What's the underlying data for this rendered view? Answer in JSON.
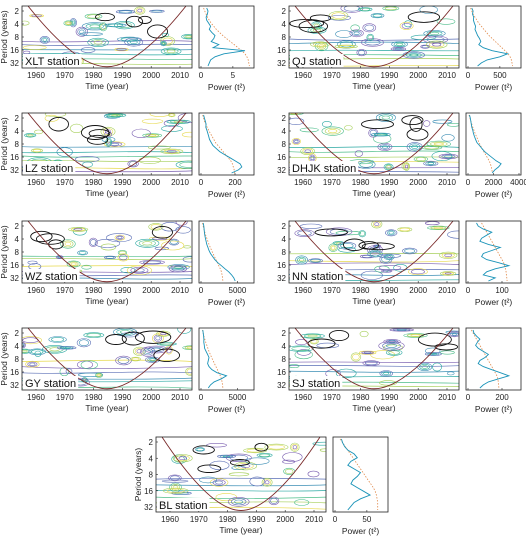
{
  "chart_data": {
    "type": "wavelet-power-spectrum",
    "panels": [
      {
        "station": "XLT station",
        "xlabel": "Time (year)",
        "ylabel": "Period (years)",
        "x_ticks": [
          "1960",
          "1970",
          "1980",
          "1990",
          "2000",
          "2010"
        ],
        "y_ticks": [
          "2",
          "4",
          "8",
          "16",
          "32"
        ],
        "power_label": "Power (t²)",
        "power_ticks": [
          "0",
          "5"
        ],
        "power_max": 8,
        "global_power": [
          0.9,
          1.1,
          1.0,
          0.8,
          0.9,
          1.2,
          1.5,
          1.3,
          1.7,
          2.2,
          2.0,
          1.6,
          2.8,
          1.9,
          6.9,
          3.6,
          2.2,
          1.5,
          1.3,
          1.1
        ],
        "significance": [
          0.4,
          0.6,
          0.8,
          1.0,
          1.3,
          1.6,
          2.0,
          2.4,
          2.9,
          3.4,
          4.0,
          4.6,
          5.2,
          5.8,
          6.4,
          6.9,
          7.2,
          7.4,
          7.5,
          7.6
        ]
      },
      {
        "station": "QJ station",
        "xlabel": "Time (year)",
        "ylabel": "",
        "x_ticks": [
          "1960",
          "1970",
          "1980",
          "1990",
          "2000",
          "2010"
        ],
        "y_ticks": [
          "2",
          "4",
          "8",
          "16",
          "32"
        ],
        "power_label": "Power (t²)",
        "power_ticks": [
          "0",
          "500"
        ],
        "power_max": 800,
        "global_power": [
          60,
          80,
          70,
          90,
          85,
          100,
          120,
          110,
          130,
          150,
          180,
          200,
          170,
          240,
          380,
          620,
          500,
          300,
          210,
          150
        ],
        "significance": [
          40,
          60,
          80,
          110,
          140,
          170,
          210,
          250,
          290,
          330,
          380,
          430,
          480,
          530,
          580,
          630,
          660,
          680,
          690,
          700
        ]
      },
      {
        "station": "LZ station",
        "xlabel": "Time (year)",
        "ylabel": "Period (years)",
        "x_ticks": [
          "1960",
          "1970",
          "1980",
          "1990",
          "2000",
          "2010"
        ],
        "y_ticks": [
          "2",
          "4",
          "8",
          "16",
          "32"
        ],
        "power_label": "Power (t²)",
        "power_ticks": [
          "0",
          "200"
        ],
        "power_max": 300,
        "global_power": [
          15,
          20,
          25,
          30,
          28,
          35,
          40,
          45,
          50,
          60,
          70,
          90,
          110,
          140,
          170,
          200,
          230,
          240,
          220,
          180
        ],
        "significance": [
          10,
          15,
          20,
          28,
          36,
          45,
          55,
          65,
          75,
          85,
          100,
          115,
          130,
          145,
          160,
          175,
          185,
          190,
          195,
          198
        ]
      },
      {
        "station": "DHJK station",
        "xlabel": "Time (year)",
        "ylabel": "",
        "x_ticks": [
          "1960",
          "1970",
          "1980",
          "1990",
          "2000",
          "2010"
        ],
        "y_ticks": [
          "2",
          "4",
          "8",
          "16",
          "32"
        ],
        "power_label": "Power (t²)",
        "power_ticks": [
          "0",
          "2000",
          "4000"
        ],
        "power_max": 4000,
        "global_power": [
          120,
          180,
          220,
          260,
          300,
          380,
          420,
          500,
          600,
          700,
          900,
          1100,
          1300,
          1600,
          1900,
          2200,
          2600,
          2400,
          2100,
          1900
        ],
        "significance": [
          80,
          150,
          220,
          300,
          380,
          470,
          560,
          660,
          760,
          860,
          980,
          1100,
          1240,
          1380,
          1520,
          1660,
          1760,
          1830,
          1880,
          1900
        ]
      },
      {
        "station": "WZ station",
        "xlabel": "Time (year)",
        "ylabel": "Period (years)",
        "x_ticks": [
          "1960",
          "1970",
          "1980",
          "1990",
          "2000",
          "2010"
        ],
        "y_ticks": [
          "2",
          "4",
          "8",
          "16",
          "32"
        ],
        "power_label": "Power (t²)",
        "power_ticks": [
          "0",
          "5000"
        ],
        "power_max": 7000,
        "global_power": [
          300,
          380,
          420,
          460,
          520,
          600,
          700,
          800,
          950,
          1100,
          1300,
          1600,
          1900,
          2300,
          2800,
          3300,
          3800,
          4200,
          4500,
          4700
        ],
        "significance": [
          200,
          300,
          400,
          520,
          650,
          800,
          950,
          1100,
          1280,
          1450,
          1650,
          1850,
          2050,
          2250,
          2450,
          2650,
          2800,
          2900,
          2950,
          3000
        ]
      },
      {
        "station": "NN station",
        "xlabel": "Time (year)",
        "ylabel": "",
        "x_ticks": [
          "1960",
          "1970",
          "1980",
          "1990",
          "2000",
          "2010"
        ],
        "y_ticks": [
          "2",
          "4",
          "8",
          "16",
          "32"
        ],
        "power_label": "Power (t²)",
        "power_ticks": [
          "0",
          "100"
        ],
        "power_max": 150,
        "global_power": [
          25,
          30,
          45,
          70,
          55,
          40,
          35,
          60,
          95,
          70,
          45,
          40,
          55,
          90,
          120,
          80,
          55,
          45,
          80,
          60
        ],
        "significance": [
          40,
          45,
          50,
          55,
          60,
          65,
          70,
          75,
          80,
          85,
          90,
          95,
          100,
          105,
          108,
          110,
          112,
          113,
          114,
          115
        ]
      },
      {
        "station": "GY station",
        "xlabel": "Time (year)",
        "ylabel": "Period (years)",
        "x_ticks": [
          "1960",
          "1970",
          "1980",
          "1990",
          "2000",
          "2010"
        ],
        "y_ticks": [
          "2",
          "4",
          "8",
          "16",
          "32"
        ],
        "power_label": "Power (t²)",
        "power_ticks": [
          "0",
          "5000"
        ],
        "power_max": 7000,
        "global_power": [
          250,
          300,
          350,
          400,
          380,
          450,
          500,
          700,
          900,
          1100,
          1000,
          900,
          1100,
          1500,
          2200,
          3500,
          2800,
          1800,
          1300,
          1000
        ],
        "significance": [
          200,
          300,
          400,
          520,
          650,
          800,
          950,
          1100,
          1280,
          1450,
          1650,
          1850,
          2050,
          2250,
          2450,
          2650,
          2800,
          2900,
          2950,
          3000
        ]
      },
      {
        "station": "SJ station",
        "xlabel": "Time (year)",
        "ylabel": "",
        "x_ticks": [
          "1960",
          "1970",
          "1980",
          "1990",
          "2000",
          "2010"
        ],
        "y_ticks": [
          "2",
          "4",
          "8",
          "16",
          "32"
        ],
        "power_label": "Power (t²)",
        "power_ticks": [
          "0",
          "200"
        ],
        "power_max": 300,
        "global_power": [
          30,
          35,
          50,
          70,
          55,
          45,
          60,
          90,
          120,
          100,
          70,
          60,
          90,
          140,
          190,
          240,
          180,
          120,
          90,
          70
        ],
        "significance": [
          20,
          30,
          40,
          50,
          60,
          70,
          80,
          90,
          100,
          110,
          120,
          130,
          140,
          150,
          160,
          170,
          175,
          178,
          180,
          182
        ]
      },
      {
        "station": "BL station",
        "xlabel": "Time (year)",
        "ylabel": "Period (years)",
        "x_ticks": [
          "1960",
          "1970",
          "1980",
          "1990",
          "2000",
          "2010"
        ],
        "y_ticks": [
          "2",
          "4",
          "8",
          "16",
          "32"
        ],
        "power_label": "Power (t²)",
        "power_ticks": [
          "0",
          "50"
        ],
        "power_max": 80,
        "global_power": [
          10,
          12,
          15,
          20,
          30,
          35,
          25,
          20,
          30,
          40,
          35,
          28,
          25,
          35,
          45,
          55,
          40,
          30,
          25,
          20
        ],
        "significance": [
          8,
          12,
          16,
          20,
          24,
          28,
          32,
          36,
          40,
          44,
          48,
          52,
          56,
          60,
          63,
          65,
          66,
          67,
          67,
          67
        ]
      }
    ],
    "colors": {
      "contours": [
        "#7a5fb0",
        "#5b6fb6",
        "#3d8fb5",
        "#2aa8a2",
        "#4dbd8a",
        "#a6cf5a",
        "#e6d94e"
      ],
      "significance_contour": "#111111",
      "coi_line": "#7a2a2a",
      "global_power_line": "#1a93b8",
      "significance_line": "#e0894a"
    }
  }
}
